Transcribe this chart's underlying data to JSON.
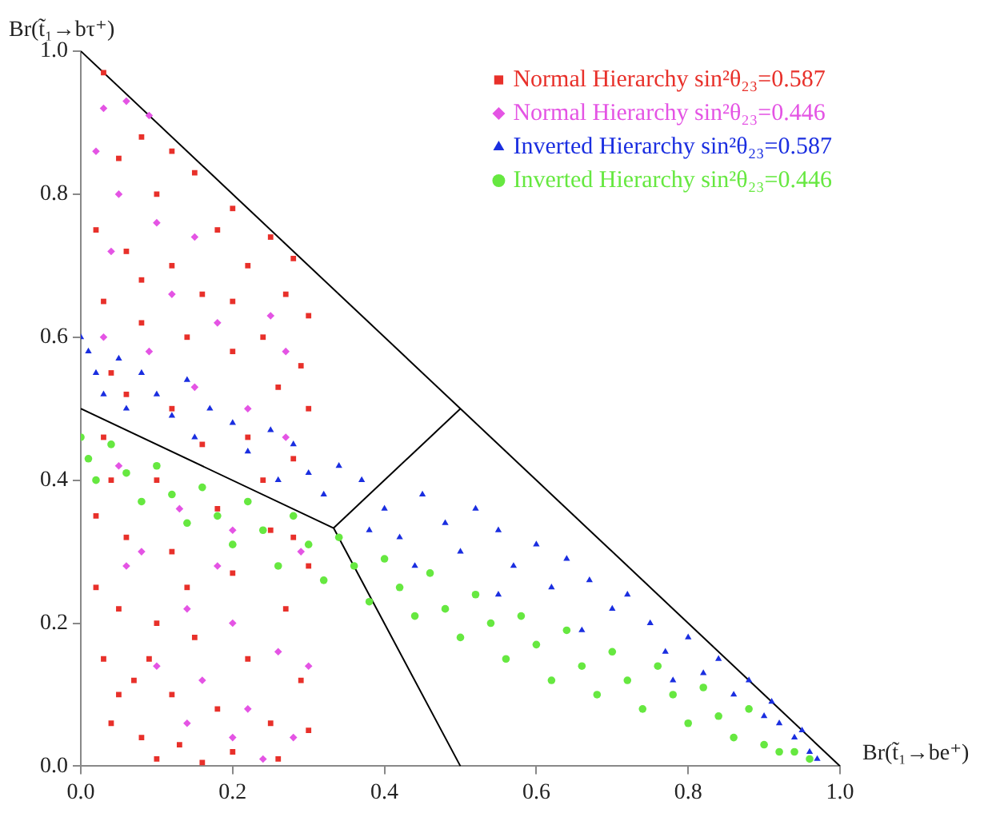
{
  "chart_data": {
    "type": "scatter",
    "xlabel": "Br(t̃₁→be⁺)",
    "ylabel": "Br(t̃₁→bτ⁺)",
    "xlim": [
      0,
      1
    ],
    "ylim": [
      0,
      1
    ],
    "xticks": [
      {
        "value": 0,
        "label": "0.0"
      },
      0.2,
      0.4,
      0.6,
      0.8,
      {
        "value": 1,
        "label": "1.0"
      }
    ],
    "yticks": [
      {
        "value": 0,
        "label": "0.0"
      },
      0.2,
      0.4,
      0.6,
      0.8,
      {
        "value": 1,
        "label": "1.0"
      }
    ],
    "grid": false,
    "legend": "top right",
    "series": [
      {
        "name": "Normal Hierarchy sin²θ₂₃=0.587",
        "marker": "square",
        "color": "#e8302a",
        "x": [
          0.03,
          0.05,
          0.08,
          0.12,
          0.15,
          0.2,
          0.25,
          0.28,
          0.1,
          0.18,
          0.22,
          0.27,
          0.3,
          0.02,
          0.06,
          0.12,
          0.16,
          0.24,
          0.29,
          0.03,
          0.08,
          0.14,
          0.2,
          0.26,
          0.3,
          0.04,
          0.06,
          0.12,
          0.22,
          0.28,
          0.03,
          0.1,
          0.18,
          0.25,
          0.3,
          0.02,
          0.06,
          0.12,
          0.2,
          0.27,
          0.02,
          0.05,
          0.1,
          0.15,
          0.22,
          0.29,
          0.03,
          0.07,
          0.12,
          0.18,
          0.25,
          0.3,
          0.04,
          0.08,
          0.13,
          0.2,
          0.26,
          0.1,
          0.16,
          0.05,
          0.09,
          0.14,
          0.04,
          0.16,
          0.08,
          0.2,
          0.24,
          0.28
        ],
        "values": [
          0.97,
          0.85,
          0.88,
          0.86,
          0.83,
          0.78,
          0.74,
          0.71,
          0.8,
          0.75,
          0.7,
          0.66,
          0.63,
          0.75,
          0.72,
          0.7,
          0.66,
          0.6,
          0.56,
          0.65,
          0.62,
          0.6,
          0.58,
          0.53,
          0.5,
          0.55,
          0.52,
          0.5,
          0.46,
          0.43,
          0.46,
          0.4,
          0.36,
          0.33,
          0.28,
          0.35,
          0.32,
          0.3,
          0.27,
          0.22,
          0.25,
          0.22,
          0.2,
          0.18,
          0.15,
          0.12,
          0.15,
          0.12,
          0.1,
          0.08,
          0.06,
          0.05,
          0.06,
          0.04,
          0.03,
          0.02,
          0.01,
          0.01,
          0.005,
          0.1,
          0.15,
          0.25,
          0.4,
          0.45,
          0.68,
          0.65,
          0.4,
          0.32
        ]
      },
      {
        "name": "Normal Hierarchy sin²θ₂₃=0.446",
        "marker": "diamond",
        "color": "#e454e4",
        "x": [
          0.03,
          0.06,
          0.09,
          0.02,
          0.05,
          0.1,
          0.15,
          0.04,
          0.12,
          0.18,
          0.25,
          0.27,
          0.03,
          0.09,
          0.15,
          0.22,
          0.27,
          0.05,
          0.13,
          0.2,
          0.29,
          0.06,
          0.14,
          0.2,
          0.26,
          0.3,
          0.1,
          0.16,
          0.22,
          0.28,
          0.14,
          0.2,
          0.24,
          0.08,
          0.18
        ],
        "values": [
          0.92,
          0.93,
          0.91,
          0.86,
          0.8,
          0.76,
          0.74,
          0.72,
          0.66,
          0.62,
          0.63,
          0.58,
          0.6,
          0.58,
          0.53,
          0.5,
          0.46,
          0.42,
          0.36,
          0.33,
          0.3,
          0.28,
          0.22,
          0.2,
          0.16,
          0.14,
          0.14,
          0.12,
          0.08,
          0.04,
          0.06,
          0.04,
          0.01,
          0.3,
          0.28
        ]
      },
      {
        "name": "Inverted Hierarchy sin²θ₂₃=0.587",
        "marker": "triangle",
        "color": "#1a2ee0",
        "x": [
          0,
          0.01,
          0.02,
          0.03,
          0.05,
          0.08,
          0.1,
          0.12,
          0.14,
          0.17,
          0.2,
          0.22,
          0.25,
          0.28,
          0.3,
          0.32,
          0.34,
          0.37,
          0.4,
          0.42,
          0.45,
          0.48,
          0.5,
          0.52,
          0.55,
          0.57,
          0.6,
          0.62,
          0.64,
          0.67,
          0.7,
          0.72,
          0.75,
          0.77,
          0.8,
          0.82,
          0.84,
          0.86,
          0.88,
          0.9,
          0.92,
          0.94,
          0.96,
          0.97,
          0.95,
          0.91,
          0.78,
          0.66,
          0.55,
          0.44,
          0.38,
          0.26,
          0.15,
          0.06
        ],
        "values": [
          0.6,
          0.58,
          0.55,
          0.52,
          0.57,
          0.55,
          0.52,
          0.49,
          0.54,
          0.5,
          0.48,
          0.44,
          0.47,
          0.45,
          0.41,
          0.38,
          0.42,
          0.4,
          0.36,
          0.32,
          0.38,
          0.34,
          0.3,
          0.36,
          0.33,
          0.28,
          0.31,
          0.25,
          0.29,
          0.26,
          0.22,
          0.24,
          0.2,
          0.16,
          0.18,
          0.13,
          0.15,
          0.1,
          0.12,
          0.07,
          0.06,
          0.04,
          0.02,
          0.01,
          0.05,
          0.09,
          0.12,
          0.19,
          0.24,
          0.28,
          0.33,
          0.4,
          0.46,
          0.5
        ]
      },
      {
        "name": "Inverted Hierarchy sin²θ₂₃=0.446",
        "marker": "circle",
        "color": "#66e840",
        "x": [
          0,
          0.01,
          0.02,
          0.04,
          0.06,
          0.08,
          0.1,
          0.12,
          0.14,
          0.16,
          0.18,
          0.2,
          0.22,
          0.24,
          0.26,
          0.28,
          0.3,
          0.32,
          0.34,
          0.36,
          0.38,
          0.4,
          0.42,
          0.44,
          0.46,
          0.48,
          0.5,
          0.52,
          0.54,
          0.56,
          0.58,
          0.6,
          0.62,
          0.64,
          0.66,
          0.68,
          0.7,
          0.72,
          0.74,
          0.76,
          0.78,
          0.8,
          0.82,
          0.84,
          0.86,
          0.88,
          0.9,
          0.92,
          0.94,
          0.96
        ],
        "values": [
          0.46,
          0.43,
          0.4,
          0.45,
          0.41,
          0.37,
          0.42,
          0.38,
          0.34,
          0.39,
          0.35,
          0.31,
          0.37,
          0.33,
          0.28,
          0.35,
          0.31,
          0.26,
          0.32,
          0.28,
          0.23,
          0.29,
          0.25,
          0.21,
          0.27,
          0.22,
          0.18,
          0.24,
          0.2,
          0.15,
          0.21,
          0.17,
          0.12,
          0.19,
          0.14,
          0.1,
          0.16,
          0.12,
          0.08,
          0.14,
          0.1,
          0.06,
          0.11,
          0.07,
          0.04,
          0.08,
          0.03,
          0.02,
          0.02,
          0.01
        ]
      },
      {
        "type": "line",
        "color": "#000000",
        "x": [
          0,
          1
        ],
        "values": [
          1,
          0
        ]
      },
      {
        "type": "line",
        "color": "#000000",
        "x": [
          0,
          0.333,
          0.5
        ],
        "values": [
          0.5,
          0.333,
          0
        ]
      },
      {
        "type": "line",
        "color": "#000000",
        "x": [
          0.333,
          0.5
        ],
        "values": [
          0.333,
          0.5
        ]
      }
    ]
  }
}
